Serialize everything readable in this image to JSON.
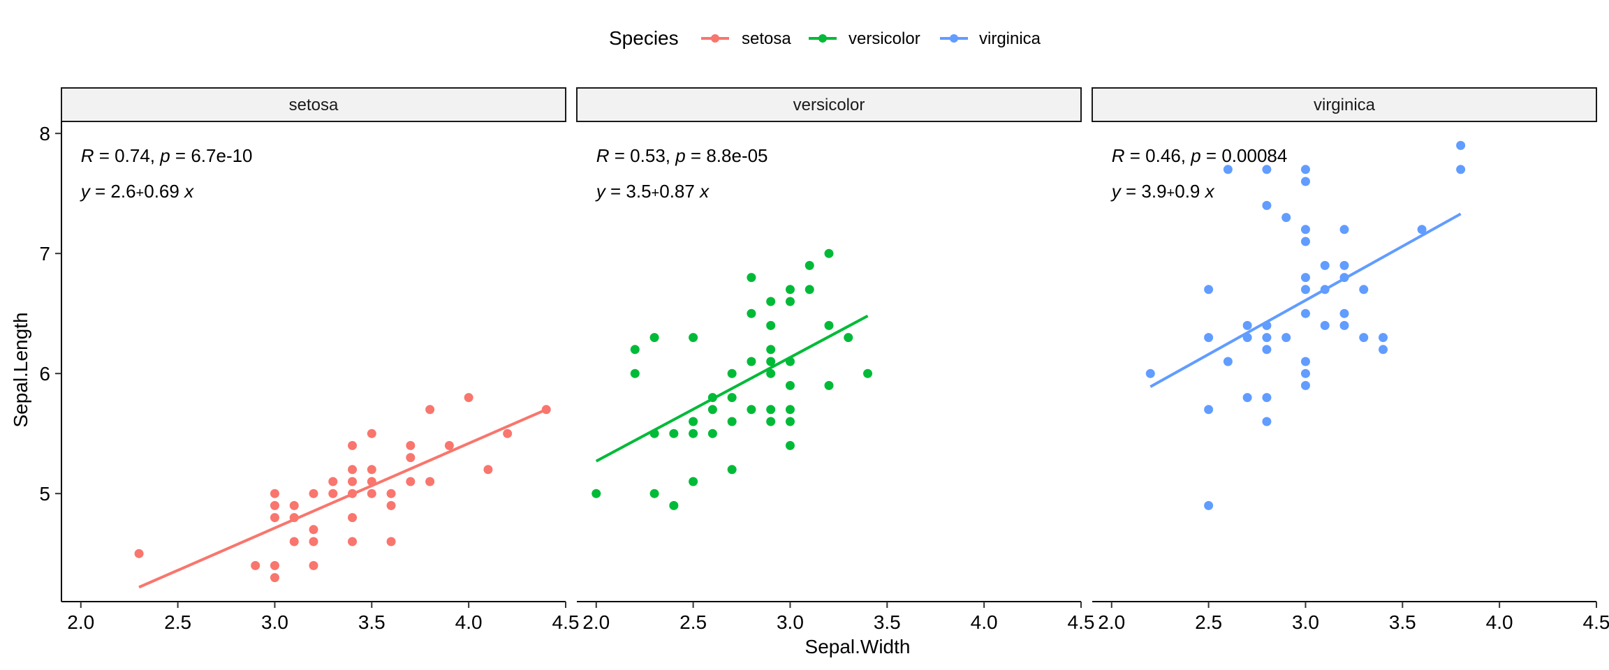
{
  "chart_data": {
    "type": "scatter",
    "xlabel": "Sepal.Width",
    "ylabel": "Sepal.Length",
    "xlim": [
      1.9,
      4.5
    ],
    "ylim": [
      4.1,
      8.1
    ],
    "xticks": [
      "2.0",
      "2.5",
      "3.0",
      "3.5",
      "4.0",
      "4.5"
    ],
    "yticks": [
      "5",
      "6",
      "7",
      "8"
    ],
    "grid": false,
    "legend": {
      "title": "Species",
      "position": "top",
      "entries": [
        "setosa",
        "versicolor",
        "virginica"
      ]
    },
    "colors": {
      "setosa": "#F8766D",
      "versicolor": "#00BA38",
      "virginica": "#619CFF"
    },
    "facets": [
      {
        "strip": "setosa",
        "r_label": "R",
        "r_value": " = 0.74, ",
        "p_label": "p",
        "p_value": " = 6.7e-10",
        "eq_y": "y",
        "eq_body": " = 2.6",
        "eq_plus": "+",
        "eq_tail": "0.69 ",
        "eq_x": "x",
        "line": {
          "x": [
            2.3,
            4.4
          ],
          "y": [
            4.22,
            5.7
          ]
        },
        "points": [
          [
            2.3,
            4.5
          ],
          [
            2.9,
            4.4
          ],
          [
            3.0,
            5.0
          ],
          [
            3.0,
            4.9
          ],
          [
            3.0,
            4.8
          ],
          [
            3.0,
            4.4
          ],
          [
            3.0,
            4.3
          ],
          [
            3.1,
            4.9
          ],
          [
            3.1,
            4.8
          ],
          [
            3.1,
            4.6
          ],
          [
            3.2,
            5.0
          ],
          [
            3.2,
            4.7
          ],
          [
            3.2,
            4.6
          ],
          [
            3.2,
            4.4
          ],
          [
            3.3,
            5.1
          ],
          [
            3.3,
            5.0
          ],
          [
            3.4,
            5.4
          ],
          [
            3.4,
            5.2
          ],
          [
            3.4,
            5.1
          ],
          [
            3.4,
            5.0
          ],
          [
            3.4,
            4.8
          ],
          [
            3.4,
            4.6
          ],
          [
            3.5,
            5.5
          ],
          [
            3.5,
            5.2
          ],
          [
            3.5,
            5.1
          ],
          [
            3.5,
            5.0
          ],
          [
            3.6,
            5.0
          ],
          [
            3.6,
            4.9
          ],
          [
            3.6,
            4.6
          ],
          [
            3.7,
            5.4
          ],
          [
            3.7,
            5.3
          ],
          [
            3.7,
            5.1
          ],
          [
            3.8,
            5.7
          ],
          [
            3.8,
            5.1
          ],
          [
            3.9,
            5.4
          ],
          [
            4.0,
            5.8
          ],
          [
            4.1,
            5.2
          ],
          [
            4.2,
            5.5
          ],
          [
            4.4,
            5.7
          ]
        ]
      },
      {
        "strip": "versicolor",
        "r_label": "R",
        "r_value": " = 0.53, ",
        "p_label": "p",
        "p_value": " = 8.8e-05",
        "eq_y": "y",
        "eq_body": " = 3.5",
        "eq_plus": "+",
        "eq_tail": "0.87 ",
        "eq_x": "x",
        "line": {
          "x": [
            2.0,
            3.4
          ],
          "y": [
            5.27,
            6.48
          ]
        },
        "points": [
          [
            2.0,
            5.0
          ],
          [
            2.2,
            6.2
          ],
          [
            2.2,
            6.0
          ],
          [
            2.3,
            6.3
          ],
          [
            2.3,
            5.5
          ],
          [
            2.3,
            5.0
          ],
          [
            2.4,
            5.5
          ],
          [
            2.4,
            4.9
          ],
          [
            2.5,
            6.3
          ],
          [
            2.5,
            5.6
          ],
          [
            2.5,
            5.5
          ],
          [
            2.5,
            5.1
          ],
          [
            2.6,
            5.8
          ],
          [
            2.6,
            5.7
          ],
          [
            2.6,
            5.5
          ],
          [
            2.7,
            6.0
          ],
          [
            2.7,
            5.8
          ],
          [
            2.7,
            5.6
          ],
          [
            2.7,
            5.2
          ],
          [
            2.8,
            6.8
          ],
          [
            2.8,
            6.5
          ],
          [
            2.8,
            6.1
          ],
          [
            2.8,
            5.7
          ],
          [
            2.9,
            6.6
          ],
          [
            2.9,
            6.4
          ],
          [
            2.9,
            6.2
          ],
          [
            2.9,
            6.1
          ],
          [
            2.9,
            6.0
          ],
          [
            2.9,
            5.7
          ],
          [
            2.9,
            5.6
          ],
          [
            3.0,
            6.7
          ],
          [
            3.0,
            6.6
          ],
          [
            3.0,
            6.1
          ],
          [
            3.0,
            5.9
          ],
          [
            3.0,
            5.7
          ],
          [
            3.0,
            5.6
          ],
          [
            3.0,
            5.4
          ],
          [
            3.1,
            6.9
          ],
          [
            3.1,
            6.7
          ],
          [
            3.2,
            7.0
          ],
          [
            3.2,
            6.4
          ],
          [
            3.2,
            5.9
          ],
          [
            3.3,
            6.3
          ],
          [
            3.4,
            6.0
          ]
        ]
      },
      {
        "strip": "virginica",
        "r_label": "R",
        "r_value": " = 0.46, ",
        "p_label": "p",
        "p_value": " = 0.00084",
        "eq_y": "y",
        "eq_body": " = 3.9",
        "eq_plus": "+",
        "eq_tail": "0.9 ",
        "eq_x": "x",
        "line": {
          "x": [
            2.2,
            3.8
          ],
          "y": [
            5.89,
            7.33
          ]
        },
        "points": [
          [
            2.2,
            6.0
          ],
          [
            2.5,
            6.7
          ],
          [
            2.5,
            6.3
          ],
          [
            2.5,
            5.7
          ],
          [
            2.5,
            4.9
          ],
          [
            2.6,
            7.7
          ],
          [
            2.6,
            6.1
          ],
          [
            2.7,
            6.4
          ],
          [
            2.7,
            6.3
          ],
          [
            2.7,
            5.8
          ],
          [
            2.8,
            7.7
          ],
          [
            2.8,
            7.4
          ],
          [
            2.8,
            6.4
          ],
          [
            2.8,
            6.3
          ],
          [
            2.8,
            6.2
          ],
          [
            2.8,
            5.8
          ],
          [
            2.8,
            5.6
          ],
          [
            2.9,
            7.3
          ],
          [
            2.9,
            6.3
          ],
          [
            3.0,
            7.7
          ],
          [
            3.0,
            7.6
          ],
          [
            3.0,
            7.2
          ],
          [
            3.0,
            7.1
          ],
          [
            3.0,
            6.8
          ],
          [
            3.0,
            6.7
          ],
          [
            3.0,
            6.5
          ],
          [
            3.0,
            6.1
          ],
          [
            3.0,
            6.0
          ],
          [
            3.0,
            5.9
          ],
          [
            3.1,
            6.9
          ],
          [
            3.1,
            6.7
          ],
          [
            3.1,
            6.4
          ],
          [
            3.2,
            7.2
          ],
          [
            3.2,
            6.9
          ],
          [
            3.2,
            6.8
          ],
          [
            3.2,
            6.5
          ],
          [
            3.2,
            6.4
          ],
          [
            3.3,
            6.7
          ],
          [
            3.3,
            6.3
          ],
          [
            3.4,
            6.3
          ],
          [
            3.4,
            6.2
          ],
          [
            3.6,
            7.2
          ],
          [
            3.8,
            7.9
          ],
          [
            3.8,
            7.7
          ]
        ]
      }
    ]
  }
}
